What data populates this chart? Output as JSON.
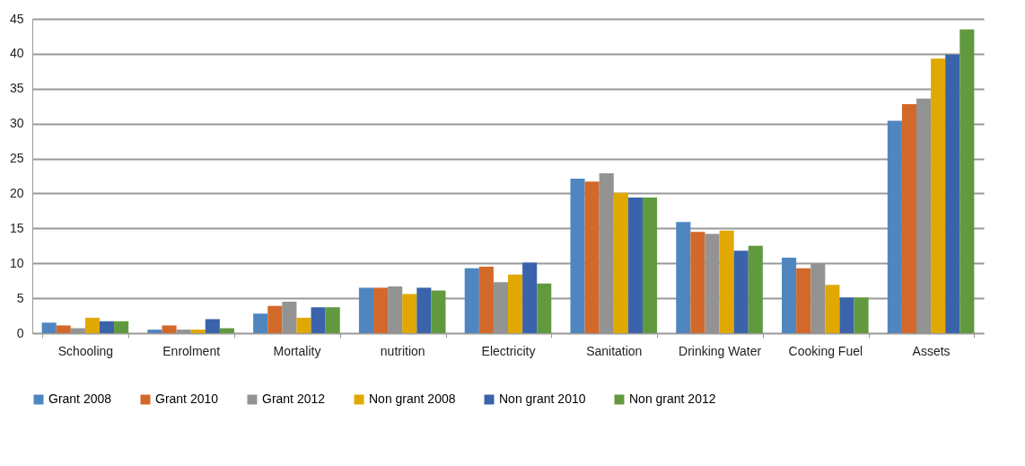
{
  "chart_data": {
    "type": "bar",
    "categories": [
      "Schooling",
      "Enrolment",
      "Mortality",
      "nutrition",
      "Electricity",
      "Sanitation",
      "Drinking Water",
      "Cooking Fuel",
      "Assets"
    ],
    "series": [
      {
        "name": "Grant 2008",
        "color": "#4f86c0",
        "values": [
          1.5,
          0.5,
          2.8,
          6.5,
          9.3,
          22.1,
          15.9,
          10.8,
          30.4
        ]
      },
      {
        "name": "Grant 2010",
        "color": "#d2692a",
        "values": [
          1.1,
          1.1,
          3.9,
          6.5,
          9.5,
          21.7,
          14.5,
          9.3,
          32.8
        ]
      },
      {
        "name": "Grant 2012",
        "color": "#939393",
        "values": [
          0.7,
          0.5,
          4.5,
          6.7,
          7.3,
          22.9,
          14.2,
          10.0,
          33.6
        ]
      },
      {
        "name": "Non grant 2008",
        "color": "#e0a800",
        "values": [
          2.2,
          0.5,
          2.2,
          5.6,
          8.4,
          20.1,
          14.7,
          6.9,
          39.3
        ]
      },
      {
        "name": "Non grant 2010",
        "color": "#3a63ab",
        "values": [
          1.7,
          2.0,
          3.7,
          6.5,
          10.1,
          19.4,
          11.8,
          5.1,
          39.9
        ]
      },
      {
        "name": "Non grant 2012",
        "color": "#619a3e",
        "values": [
          1.7,
          0.7,
          3.7,
          6.1,
          7.1,
          19.4,
          12.5,
          5.1,
          43.5
        ]
      }
    ],
    "ylim": [
      0,
      45
    ],
    "yticks": [
      0,
      5,
      10,
      15,
      20,
      25,
      30,
      35,
      40,
      45
    ],
    "grid": "y",
    "legend": "bottom"
  }
}
